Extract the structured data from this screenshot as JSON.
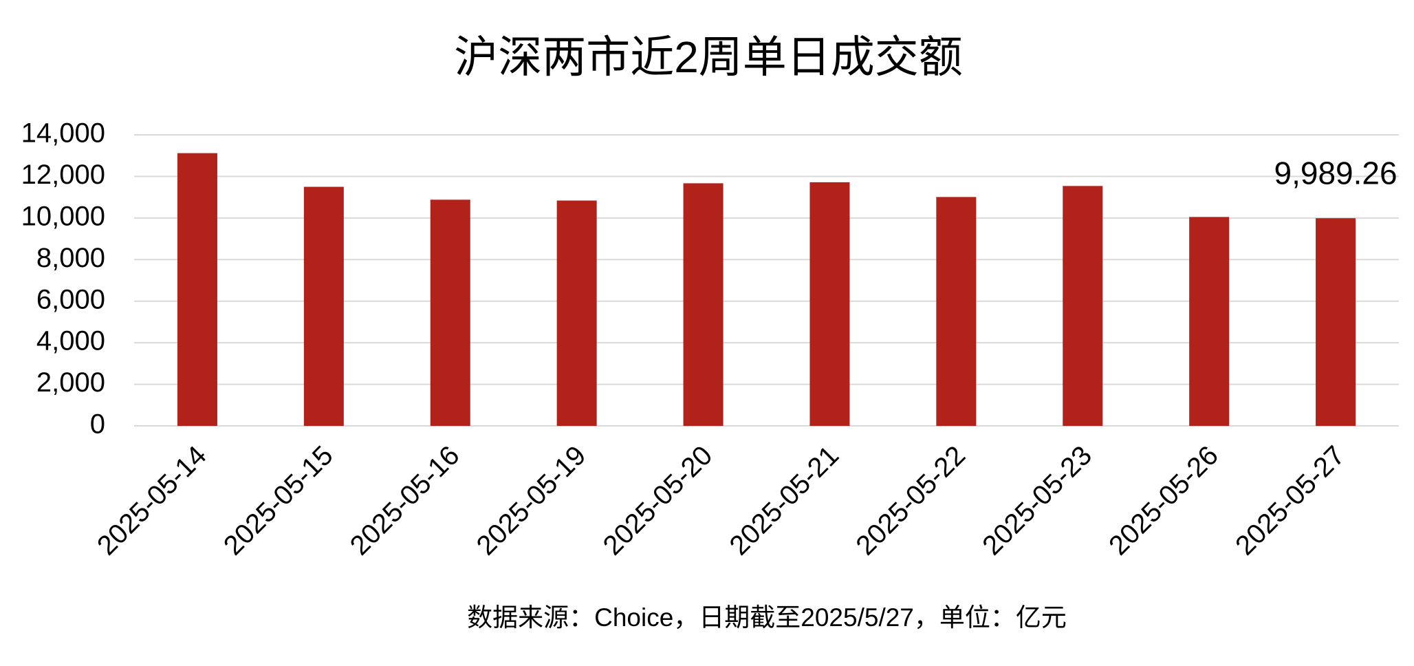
{
  "chart_data": {
    "type": "bar",
    "title": "沪深两市近2周单日成交额",
    "categories": [
      "2025-05-14",
      "2025-05-15",
      "2025-05-16",
      "2025-05-19",
      "2025-05-20",
      "2025-05-21",
      "2025-05-22",
      "2025-05-23",
      "2025-05-26",
      "2025-05-27"
    ],
    "values": [
      13120,
      11500,
      10880,
      10840,
      11670,
      11720,
      11010,
      11540,
      10050,
      9989.26
    ],
    "value_labels": [
      null,
      null,
      null,
      null,
      null,
      null,
      null,
      null,
      null,
      "9,989.26"
    ],
    "color": "#b0221a",
    "ylim": [
      0,
      14000
    ],
    "yticks": [
      0,
      {
        "value": 2000,
        "label": "2,000"
      },
      {
        "value": 4000,
        "label": "4,000"
      },
      {
        "value": 6000,
        "label": "6,000"
      },
      {
        "value": 8000,
        "label": "8,000"
      },
      {
        "value": 10000,
        "label": "10,000"
      },
      {
        "value": 12000,
        "label": "12,000"
      },
      {
        "value": 14000,
        "label": "14,000"
      }
    ],
    "grid": true,
    "note": "数据来源：Choice，日期截至2025/5/27，单位：亿元"
  }
}
